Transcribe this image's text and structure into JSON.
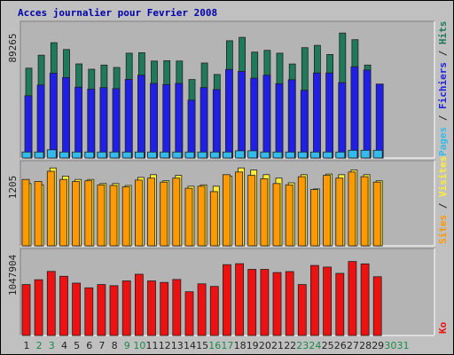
{
  "title": "Acces journalier pour Fevrier 2008",
  "colors": {
    "background": "#c0c0c0",
    "title": "#0000aa",
    "panel": "#b4b4b4",
    "hits": "#1f7a5c",
    "files": "#1f1fe6",
    "pages": "#33bbee",
    "visits": "#ffee33",
    "sites": "#ff9900",
    "kb": "#ee1111",
    "axis_label": "#222222",
    "weekend_label": "#1a8a4a"
  },
  "chart_data": [
    {
      "type": "bar",
      "name": "hits-files-pages",
      "ymax_label": "89265",
      "ylim": [
        0,
        89265
      ],
      "legend": [
        {
          "text": "Pages",
          "color": "#33bbee"
        },
        {
          "text": " / ",
          "color": "#222222"
        },
        {
          "text": "Fichiers",
          "color": "#1f1fe6"
        },
        {
          "text": " / ",
          "color": "#222222"
        },
        {
          "text": "Hits",
          "color": "#1f7a5c"
        }
      ],
      "categories": [
        "1",
        "2",
        "3",
        "4",
        "5",
        "6",
        "7",
        "8",
        "9",
        "10",
        "11",
        "12",
        "13",
        "14",
        "15",
        "16",
        "17",
        "18",
        "19",
        "20",
        "21",
        "22",
        "23",
        "24",
        "25",
        "26",
        "27",
        "28",
        "29",
        "30",
        "31"
      ],
      "series": [
        {
          "name": "Hits",
          "color": "#1f7a5c",
          "values": [
            60200,
            68900,
            77300,
            72700,
            63100,
            59500,
            62300,
            60700,
            70300,
            70600,
            65000,
            65200,
            65000,
            52600,
            63700,
            56000,
            78600,
            80900,
            71000,
            72200,
            70300,
            63000,
            74000,
            75500,
            69400,
            83800,
            79300,
            62300,
            null,
            null,
            null
          ]
        },
        {
          "name": "Fichiers",
          "color": "#1f1fe6",
          "values": [
            41700,
            48900,
            56900,
            53900,
            47500,
            46200,
            47200,
            46500,
            52700,
            55500,
            50000,
            49300,
            50000,
            38800,
            47200,
            45900,
            59400,
            58100,
            53500,
            55500,
            49800,
            52500,
            45400,
            57000,
            57000,
            50500,
            61200,
            59000,
            49600,
            null,
            null
          ]
        },
        {
          "name": "Pages",
          "color": "#33bbee",
          "values": [
            4000,
            4000,
            5500,
            4000,
            4000,
            4000,
            4000,
            4000,
            4000,
            4000,
            4000,
            4000,
            4000,
            4000,
            4000,
            4000,
            4000,
            4800,
            4800,
            4000,
            4000,
            4000,
            4000,
            4000,
            4000,
            4000,
            5200,
            5200,
            5200,
            null,
            null
          ]
        }
      ]
    },
    {
      "type": "bar",
      "name": "visites-sites",
      "ymax_label": "1205",
      "ylim": [
        0,
        1205
      ],
      "legend": [
        {
          "text": "Sites",
          "color": "#ff9900"
        },
        {
          "text": " / ",
          "color": "#222222"
        },
        {
          "text": "Visites",
          "color": "#ffee33"
        }
      ],
      "categories": [
        "1",
        "2",
        "3",
        "4",
        "5",
        "6",
        "7",
        "8",
        "9",
        "10",
        "11",
        "12",
        "13",
        "14",
        "15",
        "16",
        "17",
        "18",
        "19",
        "20",
        "21",
        "22",
        "23",
        "24",
        "25",
        "26",
        "27",
        "28",
        "29",
        "30",
        "31"
      ],
      "series": [
        {
          "name": "Visites",
          "color": "#ffee33",
          "values": [
            920,
            900,
            1150,
            1030,
            980,
            980,
            920,
            920,
            890,
            1010,
            1050,
            960,
            1040,
            880,
            900,
            880,
            1030,
            1150,
            1120,
            1050,
            1000,
            930,
            1050,
            840,
            1060,
            1050,
            1120,
            1050,
            960,
            null,
            null
          ]
        },
        {
          "name": "Sites",
          "color": "#ff9900",
          "values": [
            980,
            950,
            1100,
            980,
            950,
            960,
            900,
            890,
            870,
            970,
            1000,
            940,
            1000,
            850,
            880,
            800,
            1050,
            1090,
            1040,
            990,
            920,
            900,
            1020,
            830,
            1040,
            1000,
            1090,
            1020,
            940,
            null,
            null
          ]
        }
      ]
    },
    {
      "type": "bar",
      "name": "ko",
      "ymax_label": "1047904",
      "ylim": [
        0,
        1047904
      ],
      "legend": [
        {
          "text": "Ko",
          "color": "#ee1111"
        }
      ],
      "categories": [
        "1",
        "2",
        "3",
        "4",
        "5",
        "6",
        "7",
        "8",
        "9",
        "10",
        "11",
        "12",
        "13",
        "14",
        "15",
        "16",
        "17",
        "18",
        "19",
        "20",
        "21",
        "22",
        "23",
        "24",
        "25",
        "26",
        "27",
        "28",
        "29",
        "30",
        "31"
      ],
      "series": [
        {
          "name": "Ko",
          "color": "#ee1111",
          "values": [
            640000,
            700000,
            805000,
            744000,
            658000,
            599000,
            640000,
            625000,
            686000,
            769000,
            686000,
            667000,
            703000,
            550000,
            649000,
            617000,
            890000,
            902000,
            830000,
            830000,
            790000,
            803000,
            640000,
            880000,
            860000,
            780000,
            930000,
            900000,
            738000,
            null,
            null
          ]
        }
      ]
    }
  ],
  "days": [
    {
      "label": "1",
      "weekend": false
    },
    {
      "label": "2",
      "weekend": true
    },
    {
      "label": "3",
      "weekend": true
    },
    {
      "label": "4",
      "weekend": false
    },
    {
      "label": "5",
      "weekend": false
    },
    {
      "label": "6",
      "weekend": false
    },
    {
      "label": "7",
      "weekend": false
    },
    {
      "label": "8",
      "weekend": false
    },
    {
      "label": "9",
      "weekend": true
    },
    {
      "label": "10",
      "weekend": true
    },
    {
      "label": "11",
      "weekend": false
    },
    {
      "label": "12",
      "weekend": false
    },
    {
      "label": "13",
      "weekend": false
    },
    {
      "label": "14",
      "weekend": false
    },
    {
      "label": "15",
      "weekend": false
    },
    {
      "label": "16",
      "weekend": true
    },
    {
      "label": "17",
      "weekend": true
    },
    {
      "label": "18",
      "weekend": false
    },
    {
      "label": "19",
      "weekend": false
    },
    {
      "label": "20",
      "weekend": false
    },
    {
      "label": "21",
      "weekend": false
    },
    {
      "label": "22",
      "weekend": false
    },
    {
      "label": "23",
      "weekend": true
    },
    {
      "label": "24",
      "weekend": true
    },
    {
      "label": "25",
      "weekend": false
    },
    {
      "label": "26",
      "weekend": false
    },
    {
      "label": "27",
      "weekend": false
    },
    {
      "label": "28",
      "weekend": false
    },
    {
      "label": "29",
      "weekend": false
    },
    {
      "label": "30",
      "weekend": true
    },
    {
      "label": "31",
      "weekend": true
    }
  ]
}
